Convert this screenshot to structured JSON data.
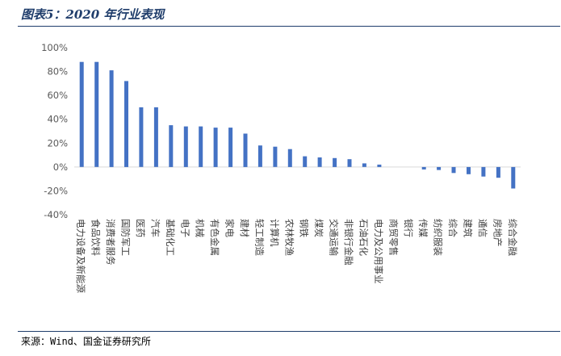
{
  "title": "图表5：2020 年行业表现",
  "source": "来源：Wind、国金证券研究所",
  "colors": {
    "bar": "#4472c4",
    "axis": "#d9d9d9",
    "tick_text": "#595959",
    "title": "#1f3d6b"
  },
  "chart_data": {
    "type": "bar",
    "title": "",
    "xlabel": "",
    "ylabel": "",
    "ylim": [
      -40,
      100
    ],
    "yticks": [
      -40,
      -20,
      0,
      20,
      40,
      60,
      80,
      100
    ],
    "ytick_labels": [
      "-40%",
      "-20%",
      "0%",
      "20%",
      "40%",
      "60%",
      "80%",
      "100%"
    ],
    "grid": false,
    "legend": "none",
    "categories": [
      "电力设备及新能源",
      "食品饮料",
      "消费者服务",
      "国防军工",
      "医药",
      "汽车",
      "基础化工",
      "电子",
      "机械",
      "有色金属",
      "家电",
      "建材",
      "轻工制造",
      "计算机",
      "农林牧渔",
      "钢铁",
      "煤炭",
      "交通运输",
      "非银行金融",
      "石油石化",
      "电力及公用事业",
      "商贸零售",
      "银行",
      "传媒",
      "纺织服装",
      "综合",
      "建筑",
      "通信",
      "房地产",
      "综合金融"
    ],
    "values": [
      88,
      88,
      81,
      72,
      50,
      50,
      35,
      34,
      34,
      33,
      33,
      28,
      18,
      17,
      15,
      9,
      8,
      7.5,
      6.5,
      3,
      2,
      0,
      0,
      -2,
      -2.5,
      -5,
      -6,
      -8,
      -9,
      -18
    ]
  }
}
